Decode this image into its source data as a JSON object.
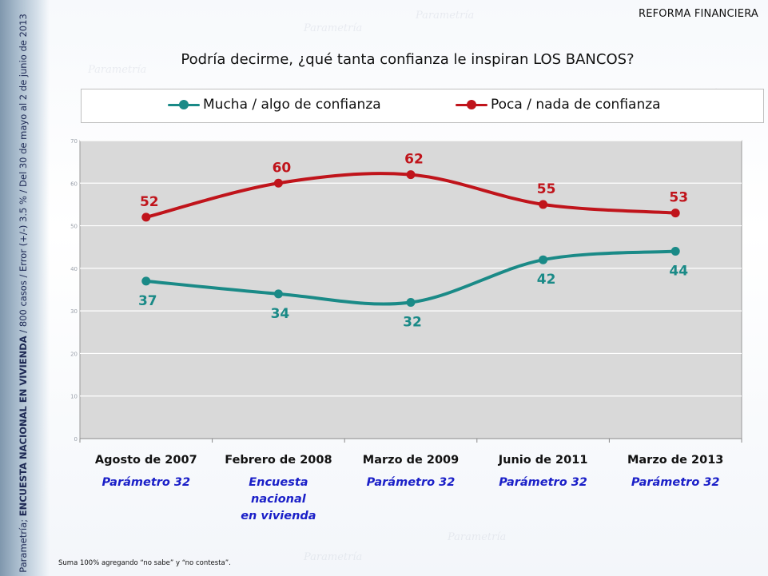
{
  "header": {
    "section": "REFORMA FINANCIERA",
    "question": "Podría decirme, ¿qué tanta confianza le inspiran LOS BANCOS?"
  },
  "side_note": {
    "brand": "Parametría;",
    "survey": "ENCUESTA NACIONAL EN VIVIENDA",
    "details": "/ 800 casos / Error (+/-) 3.5 % / Del 30 de mayo al 2 de junio de 2013"
  },
  "watermark": "Parametría",
  "footnote": "Suma 100% agregando “no sabe” y “no contesta”.",
  "colors": {
    "mucha": "#1a8a87",
    "poca": "#c0141b",
    "plot_bg": "#d9d9d9",
    "gridline": "#ffffff",
    "axis_label": "#111111",
    "sublabel": "#1b20c8"
  },
  "chart_data": {
    "type": "line",
    "categories": [
      "Agosto de 2007",
      "Febrero de 2008",
      "Marzo de 2009",
      "Junio de 2011",
      "Marzo de 2013"
    ],
    "category_sublabels": [
      [
        "Parámetro 32"
      ],
      [
        "Encuesta",
        "nacional",
        "en vivienda"
      ],
      [
        "Parámetro 32"
      ],
      [
        "Parámetro 32"
      ],
      [
        "Parámetro 32"
      ]
    ],
    "series": [
      {
        "name": "Mucha / algo de confianza",
        "color": "#1a8a87",
        "values": [
          37,
          34,
          32,
          42,
          44
        ]
      },
      {
        "name": "Poca / nada de confianza",
        "color": "#c0141b",
        "values": [
          52,
          60,
          62,
          55,
          53
        ]
      }
    ],
    "ylim": [
      0,
      70
    ],
    "yticks": [
      0,
      10,
      20,
      30,
      40,
      50,
      60,
      70
    ],
    "smooth": true,
    "data_labels": true,
    "legend_position": "top",
    "grid": true
  }
}
